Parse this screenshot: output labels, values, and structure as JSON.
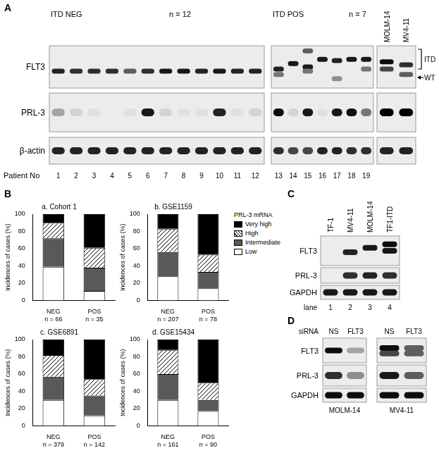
{
  "panel_a": {
    "label": "A",
    "groups": [
      {
        "title": "ITD NEG",
        "n": "n = 12"
      },
      {
        "title": "ITD POS",
        "n": "n = 7"
      }
    ],
    "cell_lines": [
      "MOLM-14",
      "MV4-11"
    ],
    "rows": [
      "FLT3",
      "PRL-3",
      "β-actin"
    ],
    "itd_label": "ITD",
    "wt_label": "WT",
    "x_label": "Patient No",
    "lanes": [
      1,
      2,
      3,
      4,
      5,
      6,
      7,
      8,
      9,
      10,
      11,
      12,
      13,
      14,
      15,
      16,
      17,
      18,
      19
    ],
    "flt3_bands": [
      [
        [
          0.6,
          0.85
        ]
      ],
      [
        [
          0.6,
          0.8
        ]
      ],
      [
        [
          0.6,
          0.8
        ]
      ],
      [
        [
          0.6,
          0.8
        ]
      ],
      [
        [
          0.6,
          0.6
        ]
      ],
      [
        [
          0.6,
          0.8
        ]
      ],
      [
        [
          0.6,
          0.9
        ]
      ],
      [
        [
          0.6,
          0.9
        ]
      ],
      [
        [
          0.6,
          0.85
        ]
      ],
      [
        [
          0.6,
          0.9
        ]
      ],
      [
        [
          0.6,
          0.85
        ]
      ],
      [
        [
          0.6,
          0.85
        ]
      ],
      [
        [
          0.55,
          0.85
        ],
        [
          0.68,
          0.5
        ]
      ],
      [
        [
          0.42,
          0.9
        ]
      ],
      [
        [
          0.12,
          0.6
        ],
        [
          0.5,
          0.9
        ],
        [
          0.6,
          0.5
        ]
      ],
      [
        [
          0.32,
          0.9
        ]
      ],
      [
        [
          0.35,
          0.85
        ],
        [
          0.78,
          0.4
        ]
      ],
      [
        [
          0.32,
          0.9
        ]
      ],
      [
        [
          0.32,
          0.9
        ],
        [
          0.55,
          0.5
        ]
      ],
      [
        [
          0.38,
          0.95
        ],
        [
          0.55,
          0.7
        ]
      ],
      [
        [
          0.45,
          0.8
        ],
        [
          0.68,
          0.6
        ]
      ]
    ],
    "prl3": [
      0.3,
      0.1,
      0.05,
      0,
      0.05,
      0.9,
      0.1,
      0.05,
      0.05,
      0.85,
      0.05,
      0.1,
      0.95,
      0.1,
      0.9,
      0.05,
      0.9,
      0.95,
      0.5,
      1,
      1
    ],
    "actin": [
      0.85,
      0.85,
      0.85,
      0.85,
      0.85,
      0.85,
      0.85,
      0.85,
      0.85,
      0.85,
      0.85,
      0.85,
      0.8,
      0.7,
      0.7,
      0.85,
      0.85,
      0.8,
      0.8,
      0.85,
      0.85
    ]
  },
  "panel_b": {
    "label": "B",
    "legend_title": "PRL-3 mRNA"
  },
  "chart_data": [
    {
      "type": "bar",
      "title": "a. Cohort 1",
      "y_label": "Incidences of cases (%)",
      "categories": [
        [
          "NEG",
          "n = 66"
        ],
        [
          "POS",
          "n = 35"
        ]
      ],
      "series": [
        {
          "name": "Low",
          "color": "#ffffff",
          "values": [
            39,
            11
          ]
        },
        {
          "name": "Intermediate",
          "color": "#595959",
          "values": [
            33,
            27
          ]
        },
        {
          "name": "High",
          "color": "#ffffff",
          "marker": "hatch",
          "values": [
            18,
            23
          ]
        },
        {
          "name": "Very high",
          "color": "#000000",
          "values": [
            10,
            39
          ]
        }
      ],
      "ylim": [
        0,
        100
      ],
      "yticks": [
        0,
        20,
        40,
        60,
        80,
        100
      ],
      "stacked": true,
      "grid": false,
      "legend": "right"
    },
    {
      "type": "bar",
      "title": "b. GSE1159",
      "y_label": "Incidences of cases (%)",
      "categories": [
        [
          "NEG",
          "n = 207"
        ],
        [
          "POS",
          "n = 78"
        ]
      ],
      "series": [
        {
          "name": "Low",
          "color": "#ffffff",
          "values": [
            28,
            14
          ]
        },
        {
          "name": "Intermediate",
          "color": "#595959",
          "values": [
            28,
            19
          ]
        },
        {
          "name": "High",
          "color": "#ffffff",
          "marker": "hatch",
          "values": [
            27,
            20
          ]
        },
        {
          "name": "Very high",
          "color": "#000000",
          "values": [
            17,
            47
          ]
        }
      ],
      "ylim": [
        0,
        100
      ],
      "yticks": [
        0,
        20,
        40,
        60,
        80,
        100
      ],
      "stacked": true,
      "grid": false
    },
    {
      "type": "bar",
      "title": "c. GSE6891",
      "y_label": "Incidences of cases (%)",
      "categories": [
        [
          "NEG",
          "n = 379"
        ],
        [
          "POS",
          "n = 142"
        ]
      ],
      "series": [
        {
          "name": "Low",
          "color": "#ffffff",
          "values": [
            30,
            12
          ]
        },
        {
          "name": "Intermediate",
          "color": "#595959",
          "values": [
            27,
            23
          ]
        },
        {
          "name": "High",
          "color": "#ffffff",
          "marker": "hatch",
          "values": [
            25,
            19
          ]
        },
        {
          "name": "Very high",
          "color": "#000000",
          "values": [
            18,
            46
          ]
        }
      ],
      "ylim": [
        0,
        100
      ],
      "yticks": [
        0,
        20,
        40,
        60,
        80,
        100
      ],
      "stacked": true,
      "grid": false
    },
    {
      "type": "bar",
      "title": "d. GSE15434",
      "y_label": "Incidences of cases (%)",
      "categories": [
        [
          "NEG",
          "n = 161"
        ],
        [
          "POS",
          "n = 90"
        ]
      ],
      "series": [
        {
          "name": "Low",
          "color": "#ffffff",
          "values": [
            30,
            17
          ]
        },
        {
          "name": "Intermediate",
          "color": "#595959",
          "values": [
            30,
            13
          ]
        },
        {
          "name": "High",
          "color": "#ffffff",
          "marker": "hatch",
          "values": [
            28,
            20
          ]
        },
        {
          "name": "Very high",
          "color": "#000000",
          "values": [
            12,
            50
          ]
        }
      ],
      "ylim": [
        0,
        100
      ],
      "yticks": [
        0,
        20,
        40,
        60,
        80,
        100
      ],
      "stacked": true,
      "grid": false
    }
  ],
  "panel_c": {
    "label": "C",
    "lanes": [
      "TF-1",
      "MV4-11",
      "MOLM-14",
      "TF1-ITD"
    ],
    "rows": [
      "FLT3",
      "PRL-3",
      "GAPDH"
    ],
    "lane_label": "lane",
    "lane_numbers": [
      1,
      2,
      3,
      4
    ],
    "flt3_bands": [
      [],
      [
        [
          0.55,
          0.85
        ]
      ],
      [
        [
          0.4,
          0.9
        ]
      ],
      [
        [
          0.28,
          0.95
        ],
        [
          0.5,
          0.9
        ]
      ]
    ],
    "prl3": [
      0,
      0.8,
      0.85,
      0.8
    ],
    "gapdh": [
      0.9,
      0.9,
      0.9,
      0.9
    ]
  },
  "panel_d": {
    "label": "D",
    "condition_label": "siRNA",
    "rows": [
      "FLT3",
      "PRL-3",
      "GAPDH"
    ],
    "groups": [
      {
        "cell_line": "MOLM-14",
        "conditions": [
          "NS",
          "FLT3"
        ],
        "flt3_bands": [
          [
            [
              0.5,
              0.95
            ]
          ],
          [
            [
              0.5,
              0.3
            ]
          ]
        ],
        "prl3": [
          0.8,
          0.4
        ],
        "gapdh": [
          0.95,
          0.95
        ]
      },
      {
        "cell_line": "MV4-11",
        "conditions": [
          "NS",
          "FLT3"
        ],
        "flt3_bands": [
          [
            [
              0.4,
              0.95
            ],
            [
              0.62,
              0.7
            ]
          ],
          [
            [
              0.4,
              0.6
            ],
            [
              0.62,
              0.6
            ]
          ]
        ],
        "prl3": [
          0.9,
          0.6
        ],
        "gapdh": [
          0.95,
          0.95
        ]
      }
    ]
  }
}
